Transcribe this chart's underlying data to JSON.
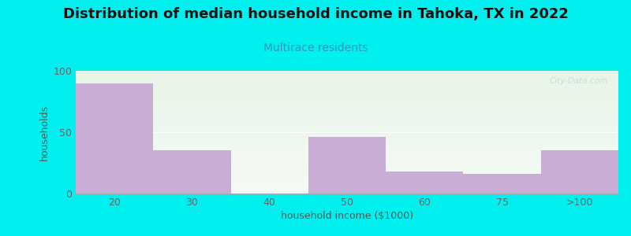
{
  "title": "Distribution of median household income in Tahoka, TX in 2022",
  "subtitle": "Multirace residents",
  "xlabel": "household income ($1000)",
  "ylabel": "households",
  "categories": [
    "20",
    "30",
    "40",
    "50",
    "60",
    "75",
    ">100"
  ],
  "values": [
    90,
    35,
    0,
    46,
    18,
    16,
    35
  ],
  "bar_color": "#c8aed4",
  "background_color": "#00f0f0",
  "ylim": [
    0,
    100
  ],
  "yticks": [
    0,
    50,
    100
  ],
  "watermark": "City-Data.com",
  "title_fontsize": 13,
  "subtitle_fontsize": 10,
  "axis_label_fontsize": 9,
  "tick_fontsize": 9,
  "bg_top_color": "#e8f4e8",
  "bg_bottom_color": "#f4faf4"
}
